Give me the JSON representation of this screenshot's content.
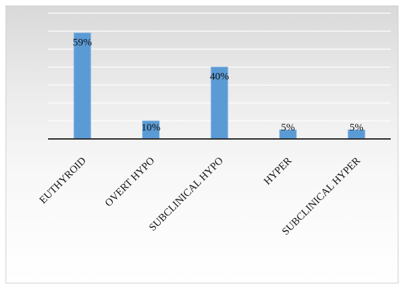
{
  "chart_data": {
    "type": "bar",
    "categories": [
      "EUTHYROID",
      "OVERT HYPO",
      "SUBCLINICAL HYPO",
      "HYPER",
      "SUBCLINICAL HYPER"
    ],
    "values": [
      59,
      10,
      40,
      5,
      5
    ],
    "data_labels": [
      "59%",
      "10%",
      "40%",
      "5%",
      "5%"
    ],
    "title": "",
    "xlabel": "",
    "ylabel": "",
    "ylim": [
      0,
      70
    ],
    "grid": true,
    "legend": "none",
    "colors": {
      "bar": "#5b9bd5",
      "axis": "#2b2b2b",
      "grid": "#ffffff"
    }
  }
}
